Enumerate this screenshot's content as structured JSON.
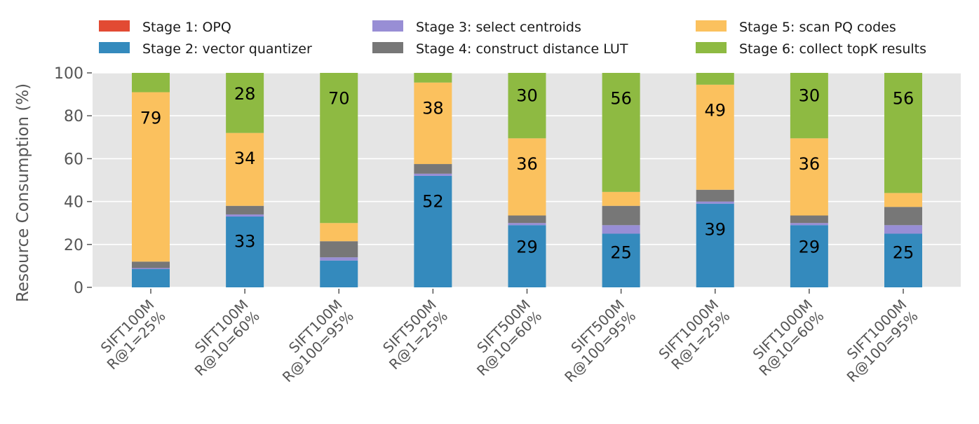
{
  "chart_data": {
    "type": "bar",
    "stacked": true,
    "title": "",
    "xlabel": "",
    "ylabel": "Resource Consumption (%)",
    "ylim": [
      0,
      100
    ],
    "yticks": [
      "0",
      "20",
      "40",
      "60",
      "80",
      "100"
    ],
    "grid": true,
    "legend_position": "top",
    "categories": [
      [
        "SIFT100M",
        "R@1=25%"
      ],
      [
        "SIFT100M",
        "R@10=60%"
      ],
      [
        "SIFT100M",
        "R@100=95%"
      ],
      [
        "SIFT500M",
        "R@1=25%"
      ],
      [
        "SIFT500M",
        "R@10=60%"
      ],
      [
        "SIFT500M",
        "R@100=95%"
      ],
      [
        "SIFT1000M",
        "R@1=25%"
      ],
      [
        "SIFT1000M",
        "R@10=60%"
      ],
      [
        "SIFT1000M",
        "R@100=95%"
      ]
    ],
    "series": [
      {
        "name": "Stage 1: OPQ",
        "color": "#E24A33",
        "values": [
          0,
          0,
          0,
          0,
          0,
          0,
          0,
          0,
          0
        ]
      },
      {
        "name": "Stage 2: vector quantizer",
        "color": "#348ABD",
        "values": [
          8.5,
          33,
          12.5,
          52,
          29,
          25,
          39,
          29,
          25
        ]
      },
      {
        "name": "Stage 3: select centroids",
        "color": "#988ED5",
        "values": [
          0.5,
          1,
          1.5,
          1,
          1,
          4,
          1,
          1,
          4
        ]
      },
      {
        "name": "Stage 4: construct distance LUT",
        "color": "#777777",
        "values": [
          3,
          4,
          7.5,
          4.5,
          3.5,
          9,
          5.5,
          3.5,
          8.5
        ]
      },
      {
        "name": "Stage 5: scan PQ codes",
        "color": "#FBC15E",
        "values": [
          79,
          34,
          8.5,
          38,
          36,
          6.5,
          49,
          36,
          6.5
        ]
      },
      {
        "name": "Stage 6: collect topK results",
        "color": "#8EBA42",
        "values": [
          9,
          28,
          70,
          4.5,
          30.5,
          55.5,
          5.5,
          30.5,
          56
        ]
      }
    ],
    "data_labels": [
      {
        "bar": 0,
        "series": 4,
        "text": "79"
      },
      {
        "bar": 1,
        "series": 1,
        "text": "33"
      },
      {
        "bar": 1,
        "series": 4,
        "text": "34"
      },
      {
        "bar": 1,
        "series": 5,
        "text": "28"
      },
      {
        "bar": 2,
        "series": 5,
        "text": "70"
      },
      {
        "bar": 3,
        "series": 1,
        "text": "52"
      },
      {
        "bar": 3,
        "series": 4,
        "text": "38"
      },
      {
        "bar": 4,
        "series": 1,
        "text": "29"
      },
      {
        "bar": 4,
        "series": 4,
        "text": "36"
      },
      {
        "bar": 4,
        "series": 5,
        "text": "30"
      },
      {
        "bar": 5,
        "series": 1,
        "text": "25"
      },
      {
        "bar": 5,
        "series": 5,
        "text": "56"
      },
      {
        "bar": 6,
        "series": 1,
        "text": "39"
      },
      {
        "bar": 6,
        "series": 4,
        "text": "49"
      },
      {
        "bar": 7,
        "series": 1,
        "text": "29"
      },
      {
        "bar": 7,
        "series": 4,
        "text": "36"
      },
      {
        "bar": 7,
        "series": 5,
        "text": "30"
      },
      {
        "bar": 8,
        "series": 1,
        "text": "25"
      },
      {
        "bar": 8,
        "series": 5,
        "text": "56"
      }
    ],
    "colors": {
      "plot_background": "#E5E5E5",
      "grid": "#FFFFFF",
      "tick_text": "#555555"
    }
  }
}
